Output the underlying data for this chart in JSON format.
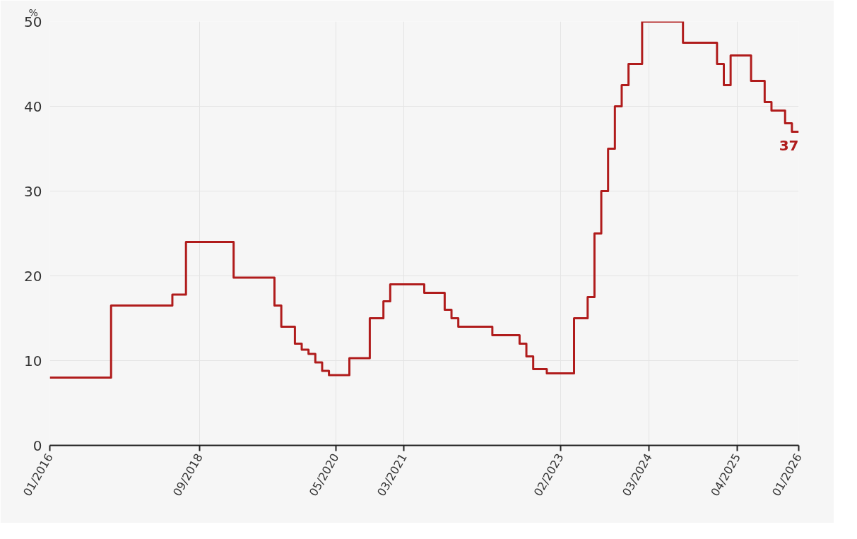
{
  "chart_data": {
    "type": "step",
    "ylabel": "%",
    "categories": [
      "01/2016",
      null,
      null,
      null,
      null,
      null,
      null,
      null,
      null,
      null,
      null,
      null,
      null,
      null,
      null,
      null,
      null,
      null,
      null,
      null,
      null,
      null,
      "09/2018",
      null,
      null,
      null,
      null,
      null,
      null,
      null,
      null,
      null,
      null,
      null,
      null,
      null,
      null,
      null,
      null,
      null,
      null,
      null,
      "05/2020",
      null,
      null,
      null,
      null,
      null,
      null,
      null,
      null,
      null,
      "03/2021",
      null,
      null,
      null,
      null,
      null,
      null,
      null,
      null,
      null,
      null,
      null,
      null,
      null,
      null,
      null,
      null,
      null,
      null,
      null,
      null,
      null,
      null,
      "02/2023",
      null,
      null,
      null,
      null,
      null,
      null,
      null,
      null,
      null,
      null,
      null,
      null,
      "03/2024",
      null,
      null,
      null,
      null,
      null,
      null,
      null,
      null,
      null,
      null,
      null,
      null,
      "04/2025",
      null,
      null,
      null,
      null,
      null,
      null,
      null,
      null,
      "01/2026"
    ],
    "series": [
      {
        "color": "#b01c1c",
        "values": [
          8,
          8,
          8,
          8,
          8,
          8,
          8,
          8,
          8,
          16.5,
          16.5,
          16.5,
          16.5,
          16.5,
          16.5,
          16.5,
          16.5,
          16.5,
          17.8,
          17.8,
          24,
          24,
          24,
          24,
          24,
          24,
          24,
          19.8,
          19.8,
          19.8,
          19.8,
          19.8,
          19.8,
          16.5,
          14,
          14,
          12,
          11.3,
          10.8,
          9.8,
          8.8,
          8.3,
          8.3,
          8.3,
          10.3,
          10.3,
          10.3,
          15,
          15,
          17,
          19,
          19,
          19,
          19,
          19,
          18,
          18,
          18,
          16,
          15,
          14,
          14,
          14,
          14,
          14,
          13,
          13,
          13,
          13,
          12,
          10.5,
          9,
          9,
          8.5,
          8.5,
          8.5,
          8.5,
          15,
          15,
          17.5,
          25,
          30,
          35,
          40,
          42.5,
          45,
          45,
          50,
          50,
          50,
          50,
          50,
          50,
          47.5,
          47.5,
          47.5,
          47.5,
          47.5,
          45,
          42.5,
          46,
          46,
          46,
          43,
          43,
          40.5,
          39.5,
          39.5,
          38,
          37,
          37
        ]
      }
    ],
    "ylim": [
      0,
      50
    ],
    "yticks": [
      0,
      10,
      20,
      30,
      40,
      50
    ],
    "grid": true,
    "line_style": "solid",
    "annotations": [
      {
        "text": "37",
        "x": "01/2026",
        "y": 37
      }
    ]
  }
}
